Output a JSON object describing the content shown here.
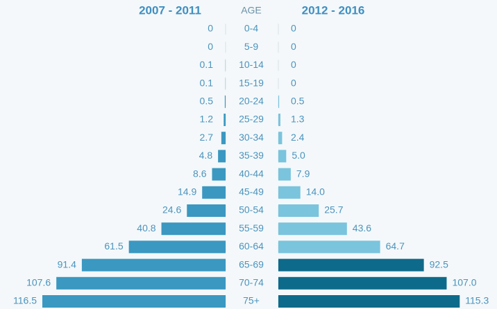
{
  "chart_data": {
    "type": "butterfly",
    "category_label": "AGE",
    "categories": [
      "0-4",
      "5-9",
      "10-14",
      "15-19",
      "20-24",
      "25-29",
      "30-34",
      "35-39",
      "40-44",
      "45-49",
      "50-54",
      "55-59",
      "60-64",
      "65-69",
      "70-74",
      "75+"
    ],
    "series": [
      {
        "name": "2007 - 2011",
        "color": "#3a98c1",
        "values": [
          0,
          0,
          0.1,
          0.1,
          0.5,
          1.2,
          2.7,
          4.8,
          8.6,
          14.9,
          24.6,
          40.8,
          61.5,
          91.4,
          107.6,
          116.5
        ],
        "value_labels": [
          "0",
          "0",
          "0.1",
          "0.1",
          "0.5",
          "1.2",
          "2.7",
          "4.8",
          "8.6",
          "14.9",
          "24.6",
          "40.8",
          "61.5",
          "91.4",
          "107.6",
          "116.5"
        ]
      },
      {
        "name": "2012 - 2016",
        "colors": [
          "#7ac4dd",
          "#7ac4dd",
          "#7ac4dd",
          "#7ac4dd",
          "#7ac4dd",
          "#7ac4dd",
          "#7ac4dd",
          "#7ac4dd",
          "#7ac4dd",
          "#7ac4dd",
          "#7ac4dd",
          "#7ac4dd",
          "#7ac4dd",
          "#0e6a8a",
          "#0e6a8a",
          "#0e6a8a"
        ],
        "values": [
          0,
          0,
          0,
          0,
          0.5,
          1.3,
          2.4,
          5.0,
          7.9,
          14.0,
          25.7,
          43.6,
          64.7,
          92.5,
          107.0,
          115.3
        ],
        "value_labels": [
          "0",
          "0",
          "0",
          "0",
          "0.5",
          "1.3",
          "2.4",
          "5.0",
          "7.9",
          "14.0",
          "25.7",
          "43.6",
          "64.7",
          "92.5",
          "107.0",
          "115.3"
        ]
      }
    ]
  }
}
